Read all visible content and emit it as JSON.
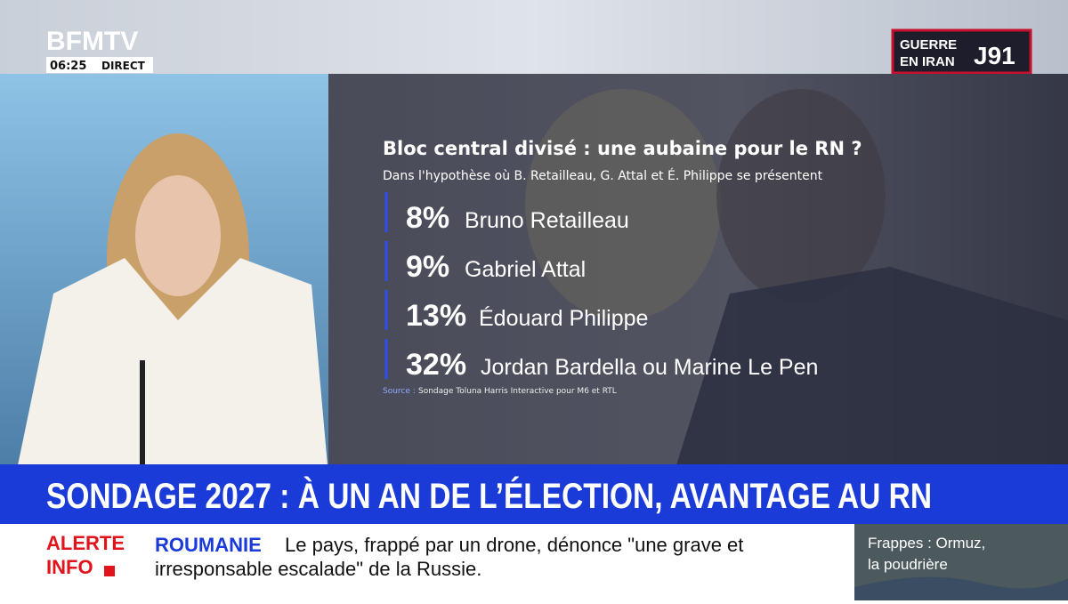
{
  "header": {
    "logo": "BFMTV",
    "time": "06:25",
    "live": "DIRECT",
    "tag_line1": "GUERRE",
    "tag_line2": "EN IRAN",
    "tag_day": "J91"
  },
  "poll": {
    "title": "Bloc central divisé : une aubaine pour le RN ?",
    "subtitle": "Dans l'hypothèse où B. Retailleau, G. Attal et É. Philippe se présentent",
    "items": [
      {
        "share": "8%",
        "name": "Bruno Retailleau"
      },
      {
        "share": "9%",
        "name": "Gabriel Attal"
      },
      {
        "share": "13%",
        "name": "Édouard Philippe"
      },
      {
        "share": "32%",
        "name": "Jordan Bardella ou Marine Le Pen"
      }
    ],
    "source_label": "Source :",
    "source": "Sondage Toluna Harris Interactive pour M6 et RTL"
  },
  "headline": "SONDAGE 2027 : À UN AN DE L’ÉLECTION, AVANTAGE AU RN",
  "ticker": {
    "alert_line1": "ALERTE",
    "alert_line2": "INFO",
    "topic": "ROUMANIE",
    "text_line1": "Le pays, frappé par un drone, dénonce \"une grave et",
    "text_line2": "irresponsable escalade\" de la Russie."
  },
  "side": {
    "line1": "Frappes : Ormuz,",
    "line2": "la poudrière"
  }
}
